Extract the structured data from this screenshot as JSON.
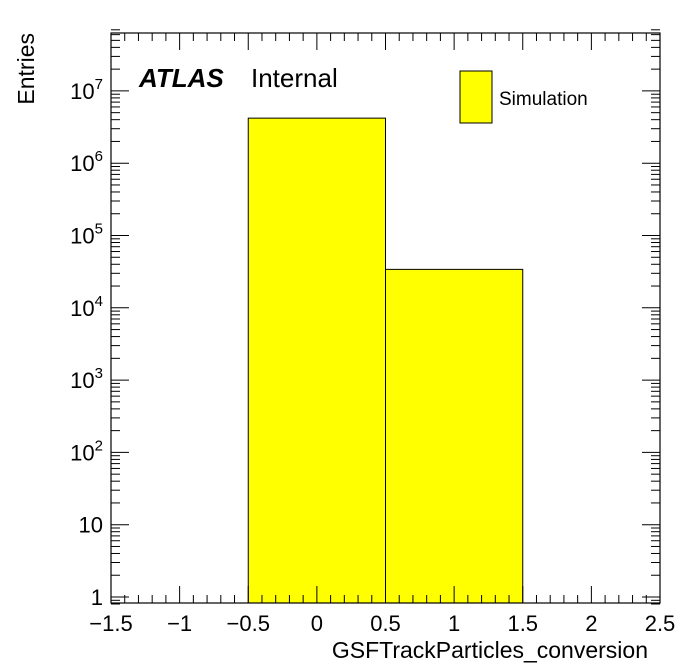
{
  "chart_data": {
    "type": "bar",
    "histogram": true,
    "bins": [
      {
        "low": -0.5,
        "high": 0.5,
        "value": 4200000
      },
      {
        "low": 0.5,
        "high": 1.5,
        "value": 34000
      }
    ],
    "xlabel": "GSFTrackParticles_conversion",
    "ylabel": "Entries",
    "xlim": [
      -1.5,
      2.5
    ],
    "ylim": [
      0.8,
      70000000
    ],
    "yscale": "log",
    "x_tick_labels": [
      "−1.5",
      "−1",
      "−0.5",
      "0",
      "0.5",
      "1",
      "1.5",
      "2",
      "2.5"
    ],
    "x_ticks": [
      -1.5,
      -1,
      -0.5,
      0,
      0.5,
      1,
      1.5,
      2,
      2.5
    ],
    "y_ticks": [
      1,
      10,
      100,
      1000,
      10000,
      100000,
      1000000,
      10000000
    ],
    "y_tick_labels": [
      {
        "base": "1",
        "exp": ""
      },
      {
        "base": "10",
        "exp": ""
      },
      {
        "base": "10",
        "exp": "2"
      },
      {
        "base": "10",
        "exp": "3"
      },
      {
        "base": "10",
        "exp": "4"
      },
      {
        "base": "10",
        "exp": "5"
      },
      {
        "base": "10",
        "exp": "6"
      },
      {
        "base": "10",
        "exp": "7"
      }
    ],
    "legend": {
      "entries": [
        {
          "name": "Simulation",
          "color": "#ffff00"
        }
      ],
      "position": "top-right"
    },
    "fill_color": "#ffff00",
    "edge_color": "#000000",
    "grid": false
  },
  "labels": {
    "atlas": "ATLAS",
    "internal": "Internal"
  }
}
